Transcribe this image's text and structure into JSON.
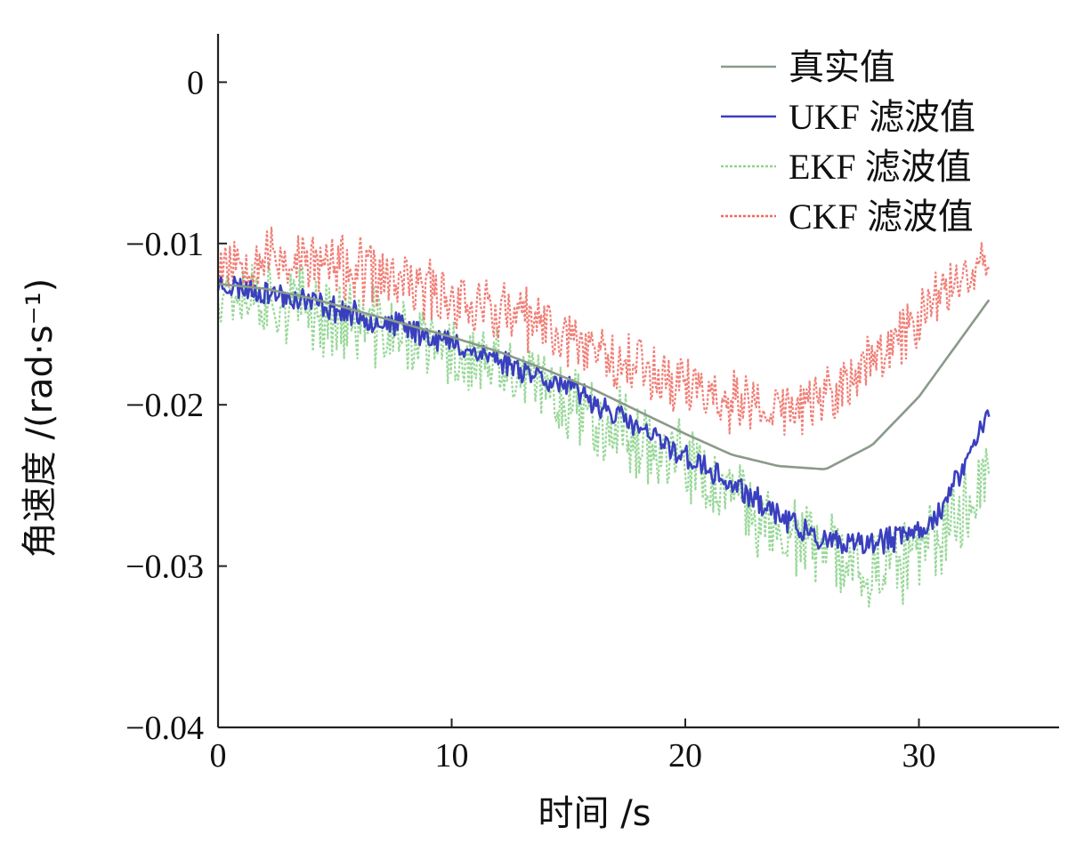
{
  "chart_data": {
    "type": "line",
    "title": "",
    "xlabel": "时间 /s",
    "ylabel": "角速度 /(rad·s⁻¹)",
    "xlim": [
      0,
      36
    ],
    "ylim": [
      -0.04,
      0.003
    ],
    "xticks": [
      "0",
      "10",
      "20",
      "30"
    ],
    "xtick_values": [
      0,
      10,
      20,
      30
    ],
    "yticks": [
      "0",
      "−0.01",
      "−0.02",
      "−0.03",
      "−0.04"
    ],
    "ytick_values": [
      0,
      -0.01,
      -0.02,
      -0.03,
      -0.04
    ],
    "grid": false,
    "legend_position": "top-right",
    "x_end": 33,
    "series": [
      {
        "name": "真实值",
        "color": "#8a9a8a",
        "style": "solid",
        "x": [
          0,
          2,
          4,
          6,
          8,
          10,
          12,
          14,
          16,
          18,
          20,
          22,
          24,
          26,
          28,
          30,
          32,
          33
        ],
        "values": [
          -0.0125,
          -0.0128,
          -0.0134,
          -0.0142,
          -0.015,
          -0.0158,
          -0.0167,
          -0.0178,
          -0.019,
          -0.0204,
          -0.0218,
          -0.0231,
          -0.0238,
          -0.024,
          -0.0225,
          -0.0195,
          -0.0155,
          -0.0135
        ],
        "noise": 0
      },
      {
        "name": "UKF 滤波值",
        "color": "#3a3fbf",
        "style": "solid",
        "x": [
          0,
          2,
          4,
          6,
          8,
          10,
          12,
          14,
          16,
          18,
          20,
          22,
          24,
          25,
          26,
          27,
          28,
          29,
          30,
          31,
          32,
          33
        ],
        "values": [
          -0.0125,
          -0.013,
          -0.0136,
          -0.0145,
          -0.0152,
          -0.0162,
          -0.0172,
          -0.0183,
          -0.0197,
          -0.0215,
          -0.0232,
          -0.025,
          -0.0268,
          -0.0278,
          -0.0285,
          -0.0288,
          -0.0286,
          -0.0283,
          -0.0278,
          -0.0265,
          -0.0235,
          -0.0205
        ],
        "noise": 0.0007
      },
      {
        "name": "EKF 滤波值",
        "color": "#8fd48f",
        "style": "dotted",
        "x": [
          0,
          2,
          4,
          6,
          8,
          10,
          12,
          14,
          16,
          18,
          20,
          22,
          24,
          26,
          28,
          30,
          32,
          33
        ],
        "values": [
          -0.0125,
          -0.0133,
          -0.0142,
          -0.015,
          -0.0158,
          -0.0168,
          -0.0178,
          -0.019,
          -0.0205,
          -0.022,
          -0.0238,
          -0.0258,
          -0.0278,
          -0.0292,
          -0.0302,
          -0.0295,
          -0.0265,
          -0.0235
        ],
        "noise": 0.0022
      },
      {
        "name": "CKF 滤波值",
        "color": "#ee6a60",
        "style": "dotted",
        "x": [
          0,
          2,
          4,
          6,
          8,
          10,
          12,
          14,
          16,
          18,
          20,
          22,
          24,
          26,
          28,
          30,
          32,
          33
        ],
        "values": [
          -0.011,
          -0.0108,
          -0.0112,
          -0.0118,
          -0.0125,
          -0.0133,
          -0.0142,
          -0.0152,
          -0.0163,
          -0.0175,
          -0.0187,
          -0.0198,
          -0.0204,
          -0.0196,
          -0.0175,
          -0.0145,
          -0.0115,
          -0.0105
        ],
        "noise": 0.0018
      }
    ]
  }
}
